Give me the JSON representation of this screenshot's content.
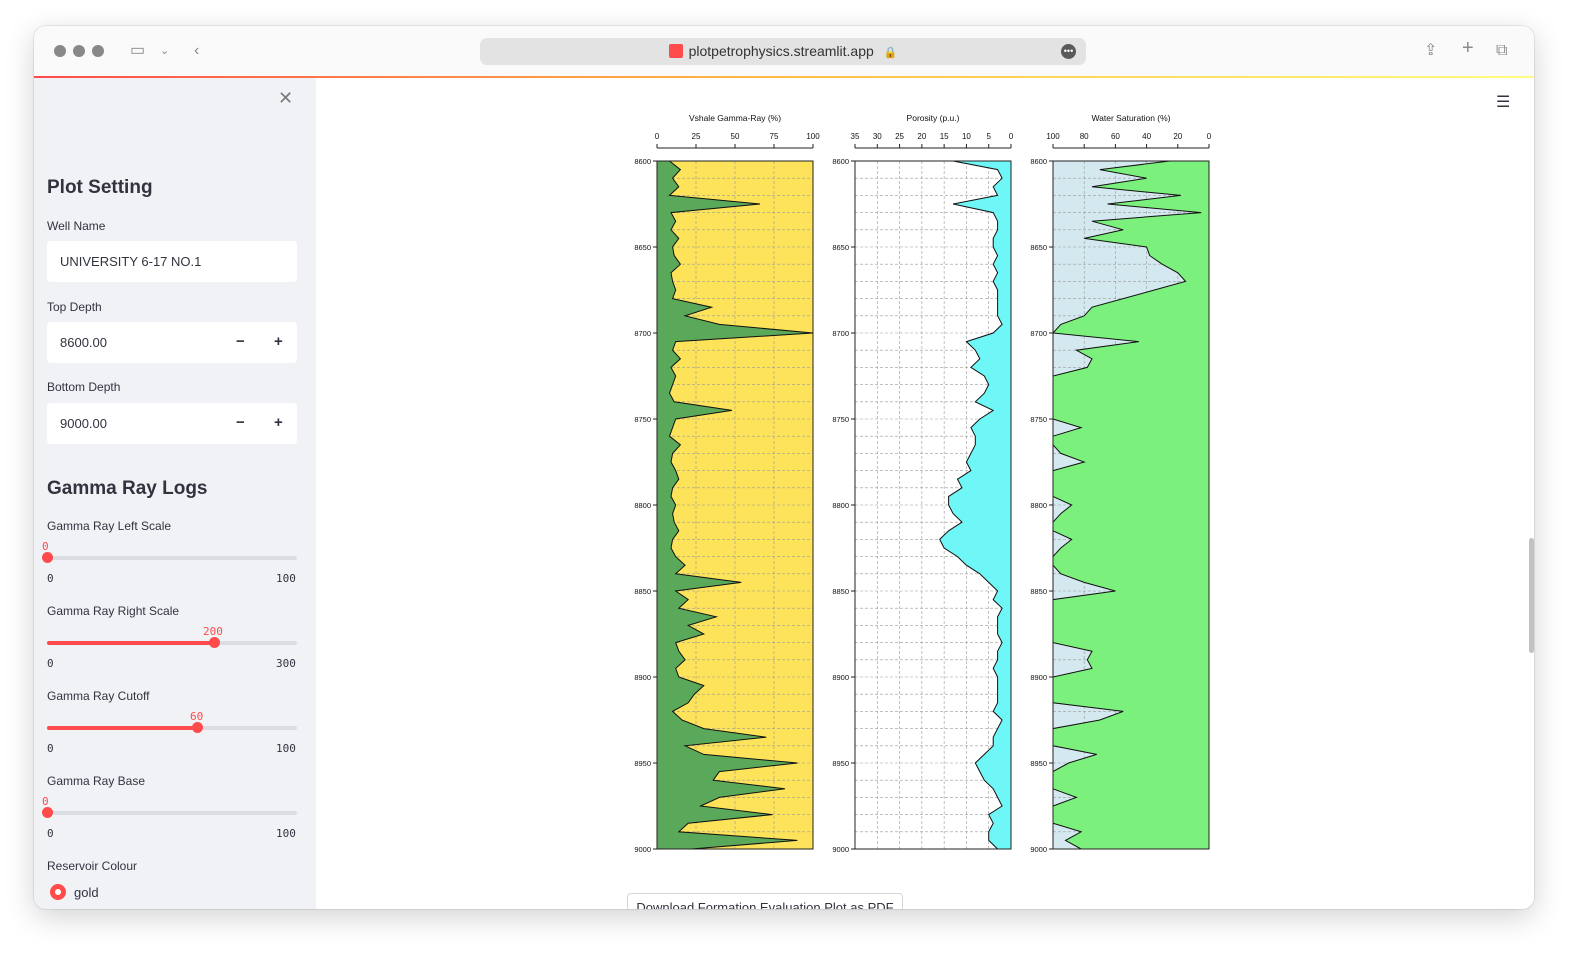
{
  "browser": {
    "url": "plotpetrophysics.streamlit.app"
  },
  "sidebar": {
    "plot_setting_title": "Plot Setting",
    "well_name_label": "Well Name",
    "well_name_value": "UNIVERSITY 6-17 NO.1",
    "top_depth_label": "Top Depth",
    "top_depth_value": "8600.00",
    "bottom_depth_label": "Bottom Depth",
    "bottom_depth_value": "9000.00",
    "stepper_minus": "−",
    "stepper_plus": "+",
    "gamma_title": "Gamma Ray Logs",
    "sliders": [
      {
        "label": "Gamma Ray Left Scale",
        "value": "0",
        "min": "0",
        "max": "100",
        "fraction": 0.0
      },
      {
        "label": "Gamma Ray Right Scale",
        "value": "200",
        "min": "0",
        "max": "300",
        "fraction": 0.6667
      },
      {
        "label": "Gamma Ray Cutoff",
        "value": "60",
        "min": "0",
        "max": "100",
        "fraction": 0.6
      },
      {
        "label": "Gamma Ray Base",
        "value": "0",
        "min": "0",
        "max": "100",
        "fraction": 0.0
      }
    ],
    "reservoir_colour_label": "Reservoir Colour",
    "reservoir_option_selected": "gold"
  },
  "main": {
    "download_button": "Download Formation Evaluation Plot as PDF"
  },
  "colors": {
    "accent": "#ff4b4b",
    "gold": "#fde35a",
    "shale_green": "#5aa85a",
    "porosity_cyan": "#6ff6f6",
    "water_sat_green": "#7cf07c",
    "water_sat_bg": "#d4e9ef"
  },
  "chart_data": [
    {
      "type": "area",
      "title": "Vshale Gamma-Ray (%)",
      "x_ticks": [
        "0",
        "25",
        "50",
        "75",
        "100"
      ],
      "xlim": [
        0,
        100
      ],
      "y_ticks": [
        "8600",
        "8650",
        "8700",
        "8750",
        "8800",
        "8850",
        "8900",
        "8950",
        "9000"
      ],
      "ylim": [
        8600,
        9000
      ],
      "grid": true,
      "depth": [
        8600,
        8605,
        8610,
        8615,
        8620,
        8625,
        8630,
        8635,
        8640,
        8645,
        8650,
        8655,
        8660,
        8665,
        8670,
        8675,
        8680,
        8685,
        8690,
        8695,
        8700,
        8705,
        8710,
        8715,
        8720,
        8725,
        8730,
        8735,
        8740,
        8745,
        8750,
        8755,
        8760,
        8765,
        8770,
        8775,
        8780,
        8785,
        8790,
        8795,
        8800,
        8805,
        8810,
        8815,
        8820,
        8825,
        8830,
        8835,
        8840,
        8845,
        8850,
        8855,
        8860,
        8865,
        8870,
        8875,
        8880,
        8885,
        8890,
        8895,
        8900,
        8905,
        8910,
        8915,
        8920,
        8925,
        8930,
        8935,
        8940,
        8945,
        8950,
        8955,
        8960,
        8965,
        8970,
        8975,
        8980,
        8985,
        8990,
        8995,
        9000
      ],
      "values": [
        8,
        15,
        10,
        14,
        8,
        66,
        9,
        12,
        9,
        14,
        10,
        11,
        15,
        9,
        10,
        12,
        10,
        35,
        18,
        40,
        100,
        12,
        10,
        15,
        9,
        12,
        10,
        8,
        11,
        48,
        12,
        10,
        8,
        15,
        10,
        9,
        12,
        14,
        10,
        9,
        12,
        10,
        11,
        14,
        10,
        9,
        12,
        18,
        12,
        54,
        12,
        20,
        14,
        38,
        20,
        30,
        12,
        14,
        18,
        12,
        14,
        30,
        24,
        20,
        10,
        16,
        30,
        70,
        18,
        30,
        90,
        40,
        36,
        82,
        40,
        28,
        74,
        20,
        14,
        90,
        22
      ],
      "fill_colors": {
        "shale": "#5aa85a",
        "reservoir": "#fde35a"
      }
    },
    {
      "type": "area",
      "title": "Porosity (p.u.)",
      "x_ticks": [
        "35",
        "30",
        "25",
        "20",
        "15",
        "10",
        "5",
        "0"
      ],
      "xlim": [
        35,
        0
      ],
      "y_ticks": [
        "8600",
        "8650",
        "8700",
        "8750",
        "8800",
        "8850",
        "8900",
        "8950",
        "9000"
      ],
      "ylim": [
        8600,
        9000
      ],
      "grid": true,
      "depth": [
        8600,
        8605,
        8610,
        8615,
        8620,
        8625,
        8630,
        8635,
        8640,
        8645,
        8650,
        8655,
        8660,
        8665,
        8670,
        8675,
        8680,
        8685,
        8690,
        8695,
        8700,
        8705,
        8710,
        8715,
        8720,
        8725,
        8730,
        8735,
        8740,
        8745,
        8750,
        8755,
        8760,
        8765,
        8770,
        8775,
        8780,
        8785,
        8790,
        8795,
        8800,
        8805,
        8810,
        8815,
        8820,
        8825,
        8830,
        8835,
        8840,
        8845,
        8850,
        8855,
        8860,
        8865,
        8870,
        8875,
        8880,
        8885,
        8890,
        8895,
        8900,
        8905,
        8910,
        8915,
        8920,
        8925,
        8930,
        8935,
        8940,
        8945,
        8950,
        8955,
        8960,
        8965,
        8970,
        8975,
        8980,
        8985,
        8990,
        8995,
        9000
      ],
      "values": [
        13,
        3,
        2,
        4,
        3,
        13,
        4,
        3,
        3,
        4,
        4,
        3,
        4,
        3,
        4,
        3,
        3,
        3,
        3,
        2,
        4,
        10,
        8,
        7,
        9,
        6,
        5,
        6,
        8,
        4,
        7,
        9,
        8,
        8,
        9,
        10,
        9,
        12,
        11,
        14,
        14,
        13,
        11,
        14,
        16,
        15,
        12,
        10,
        7,
        5,
        3,
        4,
        2,
        3,
        3,
        3,
        2,
        3,
        3,
        4,
        3,
        3,
        3,
        3,
        4,
        2,
        3,
        4,
        4,
        6,
        8,
        7,
        6,
        4,
        3,
        2,
        5,
        4,
        5,
        5,
        3
      ],
      "fill_color": "#6ff6f6"
    },
    {
      "type": "area",
      "title": "Water Saturation (%)",
      "x_ticks": [
        "100",
        "80",
        "60",
        "40",
        "20",
        "0"
      ],
      "xlim": [
        100,
        0
      ],
      "y_ticks": [
        "8600",
        "8650",
        "8700",
        "8750",
        "8800",
        "8850",
        "8900",
        "8950",
        "9000"
      ],
      "ylim": [
        8600,
        9000
      ],
      "grid": true,
      "depth": [
        8600,
        8605,
        8610,
        8615,
        8620,
        8625,
        8630,
        8635,
        8640,
        8645,
        8650,
        8655,
        8660,
        8665,
        8670,
        8675,
        8680,
        8685,
        8690,
        8695,
        8700,
        8705,
        8710,
        8715,
        8720,
        8725,
        8730,
        8735,
        8740,
        8745,
        8750,
        8755,
        8760,
        8765,
        8770,
        8775,
        8780,
        8785,
        8790,
        8795,
        8800,
        8805,
        8810,
        8815,
        8820,
        8825,
        8830,
        8835,
        8840,
        8845,
        8850,
        8855,
        8860,
        8865,
        8870,
        8875,
        8880,
        8885,
        8890,
        8895,
        8900,
        8905,
        8910,
        8915,
        8920,
        8925,
        8930,
        8935,
        8940,
        8945,
        8950,
        8955,
        8960,
        8965,
        8970,
        8975,
        8980,
        8985,
        8990,
        8995,
        9000
      ],
      "values": [
        25,
        70,
        40,
        75,
        18,
        65,
        5,
        75,
        55,
        80,
        40,
        38,
        30,
        20,
        15,
        35,
        55,
        75,
        80,
        95,
        100,
        45,
        85,
        75,
        78,
        100,
        100,
        100,
        100,
        100,
        100,
        82,
        100,
        100,
        95,
        80,
        100,
        100,
        100,
        100,
        88,
        95,
        100,
        100,
        88,
        95,
        100,
        100,
        95,
        80,
        60,
        100,
        100,
        100,
        100,
        100,
        100,
        75,
        78,
        75,
        100,
        100,
        100,
        100,
        55,
        70,
        100,
        100,
        100,
        72,
        90,
        100,
        100,
        100,
        85,
        100,
        100,
        100,
        82,
        92,
        82
      ],
      "fill_color": "#7cf07c",
      "background": "#d4e9ef"
    }
  ]
}
